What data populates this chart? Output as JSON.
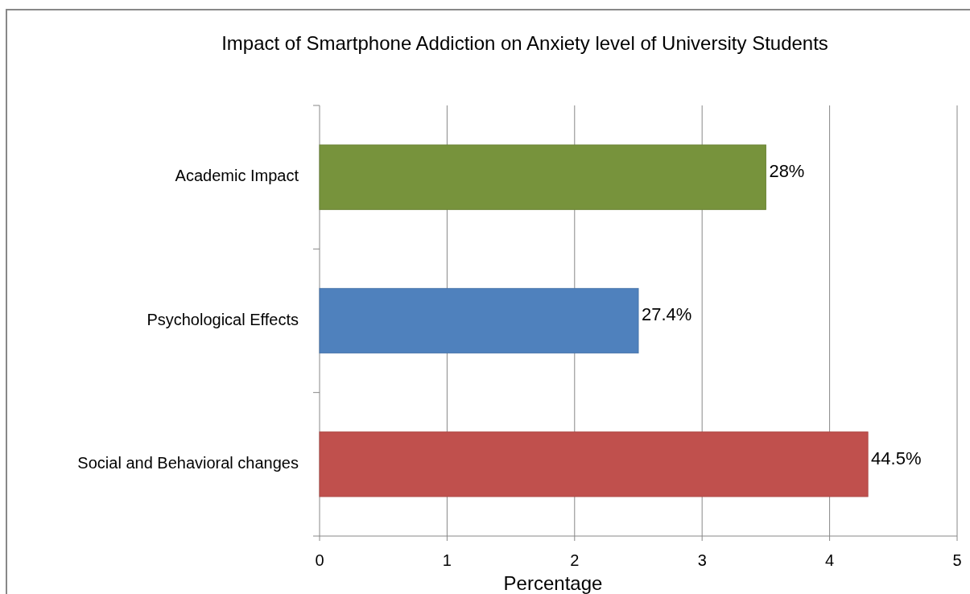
{
  "chart_data": {
    "type": "bar",
    "orientation": "horizontal",
    "title": "Impact of Smartphone Addiction on Anxiety level of University Students",
    "xlabel": "Percentage",
    "categories": [
      "Academic Impact",
      "Psychological Effects",
      "Social and Behavioral changes"
    ],
    "values": [
      3.5,
      2.5,
      4.3
    ],
    "colors": [
      "#77933c",
      "#4f81bd",
      "#c0504d"
    ],
    "annotations": [
      {
        "text": "28%",
        "x": 3.5,
        "y": "Academic Impact"
      },
      {
        "text": "27.4%",
        "x": 2.5,
        "y": "Psychological Effects"
      },
      {
        "text": "44.5%",
        "x": 4.3,
        "y": "Social and Behavioral changes"
      }
    ],
    "xlim": [
      0,
      5
    ],
    "xticks": [
      0,
      1,
      2,
      3,
      4,
      5
    ],
    "grid": "x"
  }
}
